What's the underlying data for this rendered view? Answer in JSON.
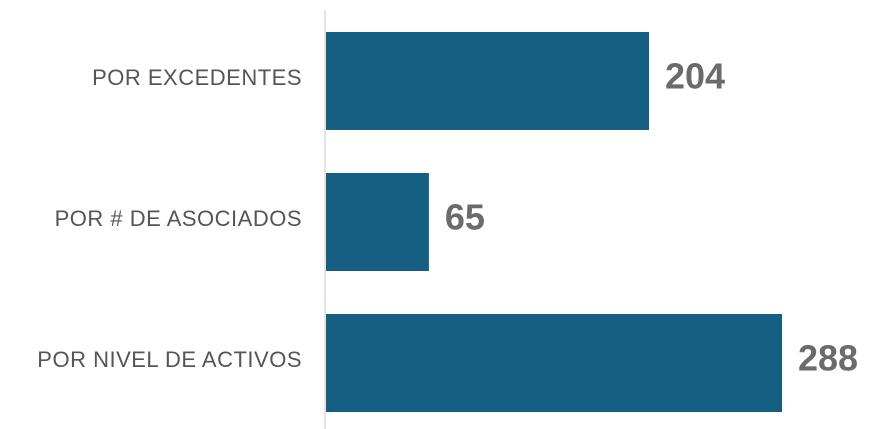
{
  "chart_data": {
    "type": "bar",
    "orientation": "horizontal",
    "categories": [
      "POR EXCEDENTES",
      "POR # DE ASOCIADOS",
      "POR NIVEL DE ACTIVOS"
    ],
    "values": [
      204,
      65,
      288
    ],
    "color": "#155f82"
  }
}
